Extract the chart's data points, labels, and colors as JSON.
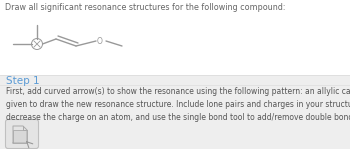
{
  "title_text": "Draw all significant resonance structures for the following compound:",
  "title_color": "#666666",
  "title_fontsize": 5.8,
  "step_label": "Step 1",
  "step_color": "#5b9bd5",
  "step_fontsize": 7.5,
  "body_text": "First, add curved arrow(s) to show the resonance using the following pattern: an allylic carbocation. Modify the second structure\ngiven to draw the new resonance structure. Include lone pairs and charges in your structure. Use the + and - tools to increase or\ndecrease the charge on an atom, and use the single bond tool to add/remove double bonds.",
  "body_fontsize": 5.5,
  "body_color": "#555555",
  "top_bg": "#ffffff",
  "bottom_bg": "#eeeeee",
  "molecule_color": "#999999",
  "icon_color": "#bbbbbb",
  "divider_color": "#dddddd",
  "step_bg_color": "#e8e8e8"
}
